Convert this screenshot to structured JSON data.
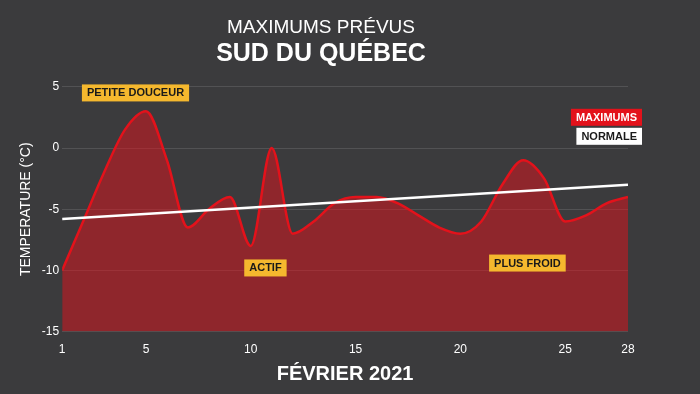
{
  "chart_data": {
    "type": "line",
    "title": "MAXIMUMS PRÉVUS",
    "subtitle": "SUD DU QUÉBEC",
    "x_label": "FÉVRIER 2021",
    "y_label": "TEMPERATURE (°C)",
    "x": [
      1,
      2,
      3,
      4,
      5,
      6,
      7,
      8,
      9,
      10,
      11,
      12,
      13,
      14,
      15,
      16,
      17,
      18,
      19,
      20,
      21,
      22,
      23,
      24,
      25,
      26,
      27,
      28
    ],
    "series": [
      {
        "name": "MAXIMUMS",
        "color": "#e3121b",
        "type": "area",
        "values": [
          -10,
          -6,
          -2,
          1.5,
          3,
          -1,
          -6.5,
          -5,
          -4,
          -8,
          0,
          -7,
          -6,
          -4.5,
          -4,
          -4,
          -4.5,
          -5.5,
          -6.5,
          -7,
          -6,
          -3,
          -1,
          -2.5,
          -6,
          -5.5,
          -4.5,
          -4
        ]
      },
      {
        "name": "NORMALE",
        "color": "#ffffff",
        "type": "line",
        "values": [
          -5.8,
          null,
          null,
          null,
          null,
          null,
          null,
          null,
          null,
          null,
          null,
          null,
          null,
          null,
          null,
          null,
          null,
          null,
          null,
          null,
          null,
          null,
          null,
          null,
          null,
          null,
          null,
          -3
        ]
      }
    ],
    "xlim": [
      1,
      28
    ],
    "xticks": [
      1,
      5,
      10,
      15,
      20,
      25,
      28
    ],
    "ylim": [
      -15,
      5
    ],
    "yticks": [
      -15,
      -10,
      -5,
      0,
      5
    ],
    "grid": true,
    "legend": "upper right",
    "annotations": [
      {
        "text": "PETITE DOUCEUR",
        "x": 4.5,
        "y": 4.5
      },
      {
        "text": "ACTIF",
        "x": 10.7,
        "y": -9.8
      },
      {
        "text": "PLUS FROID",
        "x": 23.2,
        "y": -9.4
      }
    ]
  }
}
